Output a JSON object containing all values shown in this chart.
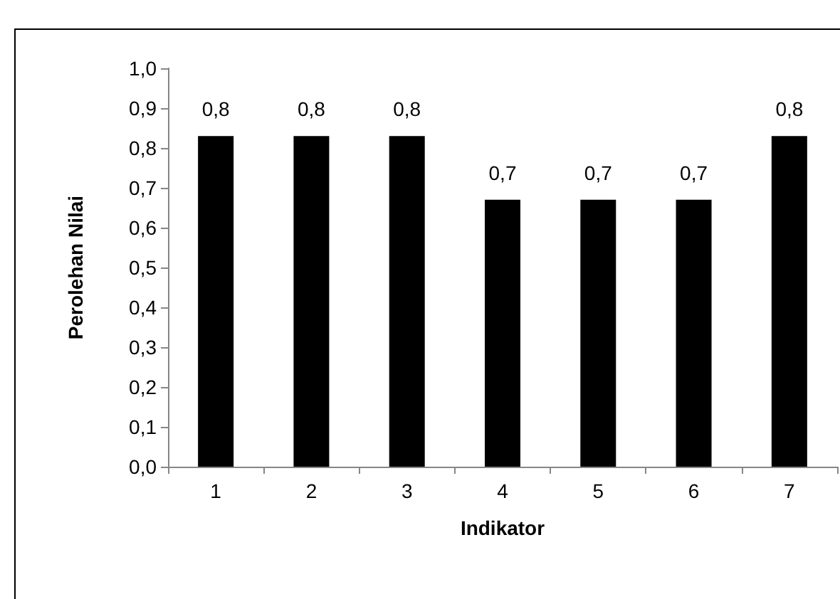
{
  "chart_data": {
    "type": "bar",
    "xlabel": "Indikator",
    "ylabel": "Perolehan Nilai",
    "categories": [
      "1",
      "2",
      "3",
      "4",
      "5",
      "6",
      "7"
    ],
    "values": [
      0.83,
      0.83,
      0.83,
      0.67,
      0.67,
      0.67,
      0.83
    ],
    "value_labels": [
      "0,8",
      "0,8",
      "0,8",
      "0,7",
      "0,7",
      "0,7",
      "0,8"
    ],
    "color": "#000000",
    "ylim": [
      0,
      1
    ],
    "yticks": [
      {
        "value": 0,
        "label": "0,0"
      },
      {
        "value": 0.1,
        "label": "0,1"
      },
      {
        "value": 0.2,
        "label": "0,2"
      },
      {
        "value": 0.3,
        "label": "0,3"
      },
      {
        "value": 0.4,
        "label": "0,4"
      },
      {
        "value": 0.5,
        "label": "0,5"
      },
      {
        "value": 0.6,
        "label": "0,6"
      },
      {
        "value": 0.7,
        "label": "0,7"
      },
      {
        "value": 0.8,
        "label": "0,8"
      },
      {
        "value": 0.9,
        "label": "0,9"
      },
      {
        "value": 1,
        "label": "1,0"
      }
    ],
    "grid": false
  }
}
